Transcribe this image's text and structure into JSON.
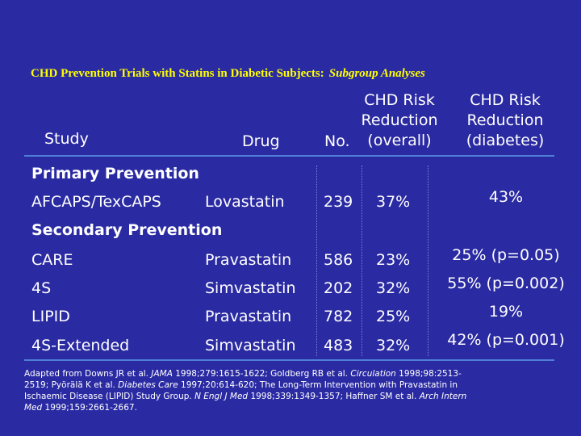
{
  "title": {
    "main": "CHD Prevention Trials with Statins in Diabetic Subjects:",
    "sub": "Subgroup Analyses"
  },
  "headers": {
    "study": "Study",
    "drug": "Drug",
    "no": "No.",
    "overall_line1": "CHD Risk",
    "overall_line2": "Reduction",
    "overall_line3": "(overall)",
    "diabetes_line1": "CHD Risk",
    "diabetes_line2": "Reduction",
    "diabetes_line3": "(diabetes)"
  },
  "sections": {
    "primary": "Primary Prevention",
    "secondary": "Secondary Prevention"
  },
  "rows": [
    {
      "study": "AFCAPS/TexCAPS",
      "drug": "Lovastatin",
      "no": "239",
      "overall": "37%",
      "diabetes": "43%"
    },
    {
      "study": "CARE",
      "drug": "Pravastatin",
      "no": "586",
      "overall": "23%",
      "diabetes": "25% (p=0.05)"
    },
    {
      "study": "4S",
      "drug": "Simvastatin",
      "no": "202",
      "overall": "32%",
      "diabetes": "55% (p=0.002)"
    },
    {
      "study": "LIPID",
      "drug": "Pravastatin",
      "no": "782",
      "overall": "25%",
      "diabetes": "19%"
    },
    {
      "study": "4S-Extended",
      "drug": "Simvastatin",
      "no": "483",
      "overall": "32%",
      "diabetes": "42% (p=0.001)"
    }
  ],
  "footnote": {
    "p1": "Adapted from Downs JR et al. ",
    "j1": "JAMA",
    "p2": " 1998;279:1615-1622; Goldberg RB et al. ",
    "j2": "Circulation",
    "p3": " 1998;98:2513-2519; Pyörälä K et al. ",
    "j3": "Diabetes Care",
    "p4": " 1997;20:614-620; The Long-Term Intervention with Pravastatin in Ischaemic  Disease (LIPID) Study Group. ",
    "j4": "N Engl J Med",
    "p5": " 1998;339:1349-1357; Haffner SM et al. ",
    "j5": "Arch Intern Med",
    "p6": " 1999;159:2661-2667."
  }
}
